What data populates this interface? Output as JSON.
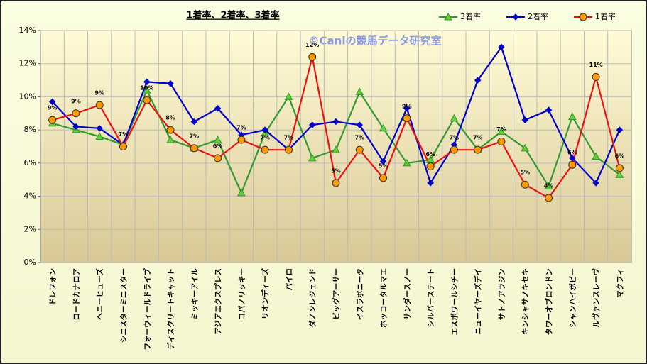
{
  "chart_data": {
    "type": "line",
    "title": "1着率、2着率、3着率",
    "watermark": "©Caniの競馬データ研究室",
    "categories": [
      "ドレフォン",
      "ロードカナロア",
      "ヘニーヒューズ",
      "シニスターミニスター",
      "フォーウィールドライブ",
      "ディスクリートキャット",
      "ミッキーアイル",
      "アジアエクスプレス",
      "コパノリッキー",
      "リオンディーズ",
      "パイロ",
      "ダノンレジェンド",
      "ビッグアーサー",
      "イスラボニータ",
      "ホッコータルマエ",
      "サンダースノー",
      "シルバーステート",
      "エスポワールシチー",
      "ニューイヤーズデイ",
      "サトノアラジン",
      "キンシャサノキセキ",
      "タワーオブロンドン",
      "シャンハイボビー",
      "ルヴァンスレーヴ",
      "マクフィ"
    ],
    "series": [
      {
        "name": "3着率",
        "color": "#339933",
        "marker": "triangle",
        "marker_fill": "#66cc33",
        "values": [
          8.4,
          8.0,
          7.6,
          7.1,
          10.4,
          7.4,
          6.9,
          7.4,
          4.2,
          7.8,
          10.0,
          6.3,
          6.8,
          10.3,
          8.1,
          6.0,
          6.2,
          8.7,
          6.8,
          7.9,
          6.9,
          4.6,
          8.8,
          6.4,
          5.3
        ]
      },
      {
        "name": "2着率",
        "color": "#0000cc",
        "marker": "diamond",
        "marker_fill": "#0000cc",
        "values": [
          9.7,
          8.2,
          8.1,
          7.1,
          10.9,
          10.8,
          8.5,
          9.3,
          7.7,
          8.0,
          6.8,
          8.3,
          8.5,
          8.3,
          6.1,
          9.3,
          4.8,
          7.1,
          11.0,
          13.0,
          8.6,
          9.2,
          6.3,
          4.8,
          8.0
        ]
      },
      {
        "name": "1着率",
        "color": "#ee1111",
        "marker": "circle",
        "marker_fill": "#ff9900",
        "values": [
          8.6,
          9.0,
          9.5,
          7.0,
          9.8,
          8.0,
          6.9,
          6.3,
          7.4,
          6.8,
          6.8,
          12.4,
          4.8,
          6.8,
          5.1,
          8.7,
          5.8,
          6.8,
          6.8,
          7.3,
          4.7,
          3.9,
          5.9,
          11.2,
          5.7
        ],
        "value_labels": [
          "9%",
          "9%",
          "9%",
          "7%",
          "10%",
          "8%",
          "7%",
          "6%",
          "7%",
          "7%",
          "7%",
          "12%",
          "5%",
          "7%",
          "5%",
          "9%",
          "6%",
          "7%",
          "7%",
          "7%",
          "5%",
          "4%",
          "6%",
          "11%",
          "6%"
        ]
      }
    ],
    "ylim": [
      0,
      14
    ],
    "yticks": [
      {
        "value": 0,
        "label": "0%"
      },
      {
        "value": 2,
        "label": "2%"
      },
      {
        "value": 4,
        "label": "4%"
      },
      {
        "value": 6,
        "label": "6%"
      },
      {
        "value": 8,
        "label": "8%"
      },
      {
        "value": 10,
        "label": "10%"
      },
      {
        "value": 12,
        "label": "12%"
      },
      {
        "value": 14,
        "label": "14%"
      }
    ],
    "grid": true,
    "legend": "top-right"
  }
}
